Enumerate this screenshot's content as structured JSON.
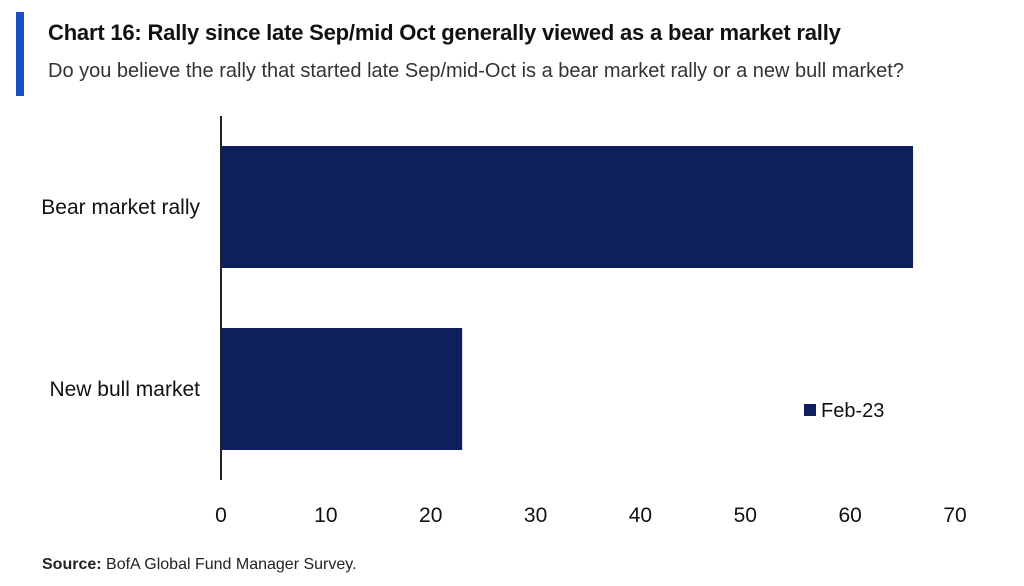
{
  "header": {
    "title": "Chart 16: Rally since late Sep/mid Oct generally viewed as a bear market rally",
    "subtitle": "Do you believe the rally that started late Sep/mid-Oct is a bear market rally or a new bull market?"
  },
  "footer": {
    "source_label": "Source:",
    "source_text": " BofA Global Fund Manager Survey."
  },
  "colors": {
    "bar": "#0d1f5c",
    "accent": "#1a4fc0"
  },
  "chart_data": {
    "type": "bar",
    "orientation": "horizontal",
    "categories": [
      "Bear market rally",
      "New bull market"
    ],
    "series": [
      {
        "name": "Feb-23",
        "values": [
          66,
          23
        ]
      }
    ],
    "xlim": [
      0,
      70
    ],
    "xticks": [
      "0",
      "10",
      "20",
      "30",
      "40",
      "50",
      "60",
      "70"
    ],
    "legend_position": "bottom-right",
    "grid": false
  }
}
